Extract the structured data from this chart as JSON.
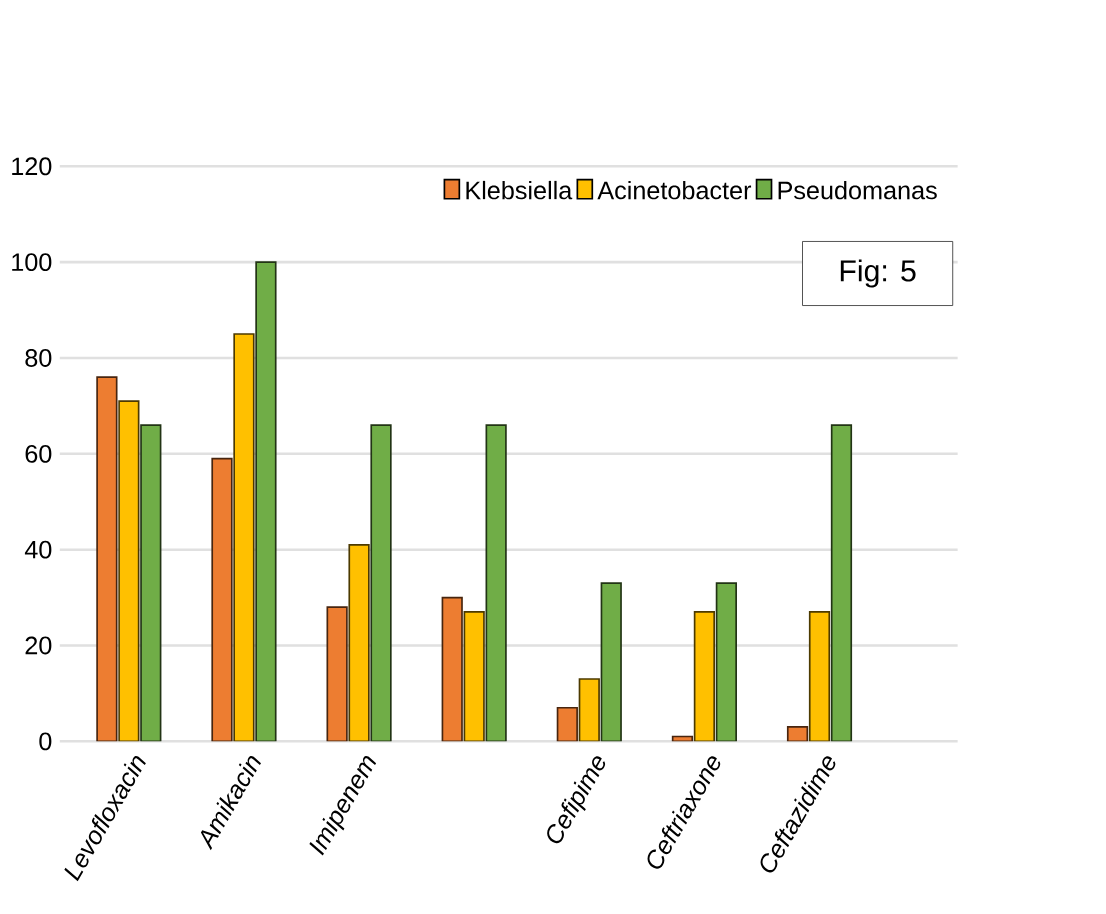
{
  "chart_data": {
    "type": "bar",
    "categories": [
      "Levofloxacin",
      "Amikacin",
      "Imipenem",
      null,
      "Cefipime",
      "Ceftriaxone",
      "Ceftazidime"
    ],
    "series": [
      {
        "name": "Klebsiella",
        "color": "#ed7d31",
        "values": [
          76,
          59,
          28,
          30,
          7,
          1,
          3
        ]
      },
      {
        "name": "Acinetobacter",
        "color": "#ffc000",
        "values": [
          71,
          85,
          41,
          27,
          13,
          27,
          27
        ]
      },
      {
        "name": "Pseudomanas",
        "color": "#70ad47",
        "values": [
          66,
          100,
          66,
          66,
          33,
          33,
          66
        ]
      }
    ],
    "ylim": [
      0,
      120
    ],
    "yticks": [
      0,
      20,
      40,
      60,
      80,
      100,
      120
    ],
    "grid": "y",
    "legend": "top right",
    "annotations": [
      "Fig: 5"
    ]
  }
}
